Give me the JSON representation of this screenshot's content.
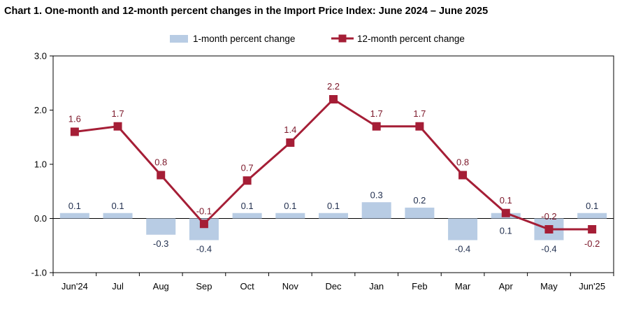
{
  "chart_data": {
    "type": "bar",
    "title": "Chart 1. One-month and 12-month percent changes in the Import Price Index: June 2024 – June 2025",
    "categories": [
      "Jun'24",
      "Jul",
      "Aug",
      "Sep",
      "Oct",
      "Nov",
      "Dec",
      "Jan",
      "Feb",
      "Mar",
      "Apr",
      "May",
      "Jun'25"
    ],
    "series": [
      {
        "name": "1-month percent change",
        "type": "bar",
        "color": "#b8cce4",
        "values": [
          0.1,
          0.1,
          -0.3,
          -0.4,
          0.1,
          0.1,
          0.1,
          0.3,
          0.2,
          -0.4,
          0.1,
          -0.4,
          0.1
        ],
        "labels": [
          "0.1",
          "0.1",
          "-0.3",
          "-0.4",
          "0.1",
          "0.1",
          "0.1",
          "0.3",
          "0.2",
          "-0.4",
          "0.1",
          "-0.4",
          "0.1"
        ]
      },
      {
        "name": "12-month percent change",
        "type": "line",
        "color": "#a51e36",
        "values": [
          1.6,
          1.7,
          0.8,
          -0.1,
          0.7,
          1.4,
          2.2,
          1.7,
          1.7,
          0.8,
          0.1,
          -0.2,
          -0.2
        ],
        "labels": [
          "1.6",
          "1.7",
          "0.8",
          "-0.1",
          "0.7",
          "1.4",
          "2.2",
          "1.7",
          "1.7",
          "0.8",
          "0.1",
          "-0.2",
          "-0.2"
        ]
      }
    ],
    "ylim": [
      -1.0,
      3.0
    ],
    "yticks": [
      -1.0,
      0.0,
      1.0,
      2.0,
      3.0
    ],
    "ytick_labels": [
      "-1.0",
      "0.0",
      "1.0",
      "2.0",
      "3.0"
    ],
    "xlabel": "",
    "ylabel": "",
    "grid": false,
    "legend": "top-center"
  }
}
